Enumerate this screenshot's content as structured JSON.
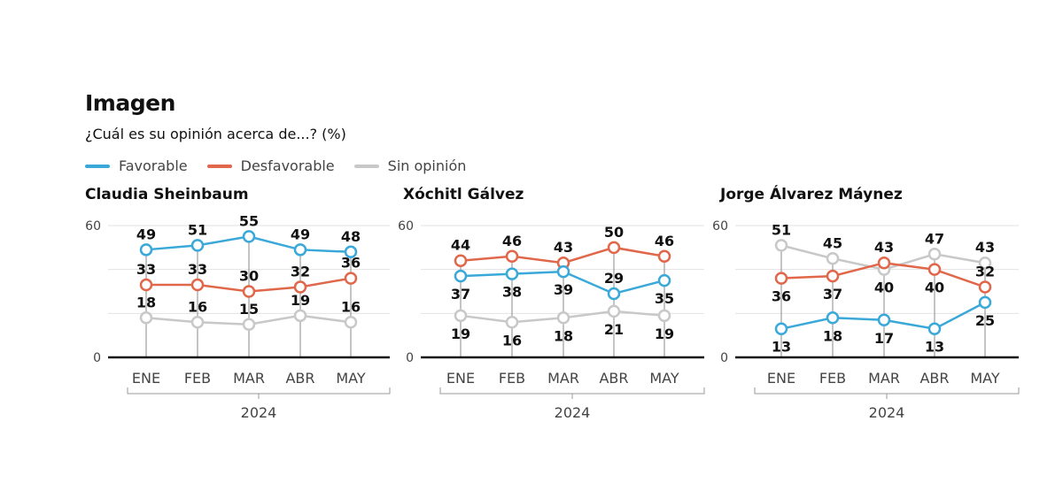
{
  "title": "Imagen",
  "subtitle": "¿Cuál es su opinión acerca de...? (%)",
  "legend": [
    {
      "name": "Favorable",
      "color": "#3aa8d8"
    },
    {
      "name": "Desfavorable",
      "color": "#e0674a"
    },
    {
      "name": "Sin opinión",
      "color": "#c8c8c8"
    }
  ],
  "chart_data": [
    {
      "type": "line",
      "title": "Claudia Sheinbaum",
      "categories": [
        "ENE",
        "FEB",
        "MAR",
        "ABR",
        "MAY"
      ],
      "xlabel": "2024",
      "ylim": [
        0,
        60
      ],
      "yticks": [
        0,
        60
      ],
      "grid": true,
      "series": [
        {
          "name": "Favorable",
          "values": [
            49,
            51,
            55,
            49,
            48
          ],
          "label_side": [
            "above",
            "above",
            "above",
            "above",
            "above"
          ]
        },
        {
          "name": "Desfavorable",
          "values": [
            33,
            33,
            30,
            32,
            36
          ],
          "label_side": [
            "above",
            "above",
            "above",
            "above",
            "above"
          ]
        },
        {
          "name": "Sin opinión",
          "values": [
            18,
            16,
            15,
            19,
            16
          ],
          "label_side": [
            "above",
            "above",
            "above",
            "above",
            "above"
          ]
        }
      ]
    },
    {
      "type": "line",
      "title": "Xóchitl Gálvez",
      "categories": [
        "ENE",
        "FEB",
        "MAR",
        "ABR",
        "MAY"
      ],
      "xlabel": "2024",
      "ylim": [
        0,
        60
      ],
      "yticks": [
        0,
        60
      ],
      "grid": true,
      "series": [
        {
          "name": "Favorable",
          "values": [
            37,
            38,
            39,
            29,
            35
          ],
          "label_side": [
            "below",
            "below",
            "below",
            "above",
            "below"
          ]
        },
        {
          "name": "Desfavorable",
          "values": [
            44,
            46,
            43,
            50,
            46
          ],
          "label_side": [
            "above",
            "above",
            "above",
            "above",
            "above"
          ]
        },
        {
          "name": "Sin opinión",
          "values": [
            19,
            16,
            18,
            21,
            19
          ],
          "label_side": [
            "below",
            "below",
            "below",
            "below",
            "below"
          ]
        }
      ]
    },
    {
      "type": "line",
      "title": "Jorge Álvarez Máynez",
      "categories": [
        "ENE",
        "FEB",
        "MAR",
        "ABR",
        "MAY"
      ],
      "xlabel": "2024",
      "ylim": [
        0,
        60
      ],
      "yticks": [
        0,
        60
      ],
      "grid": true,
      "series": [
        {
          "name": "Favorable",
          "values": [
            13,
            18,
            17,
            13,
            25
          ],
          "label_side": [
            "below",
            "below",
            "below",
            "below",
            "below"
          ]
        },
        {
          "name": "Desfavorable",
          "values": [
            36,
            37,
            43,
            40,
            32
          ],
          "label_side": [
            "below",
            "below",
            "above",
            "below",
            "above"
          ]
        },
        {
          "name": "Sin opinión",
          "values": [
            51,
            45,
            40,
            47,
            43
          ],
          "label_side": [
            "above",
            "above",
            "below",
            "above",
            "above"
          ]
        }
      ]
    }
  ]
}
